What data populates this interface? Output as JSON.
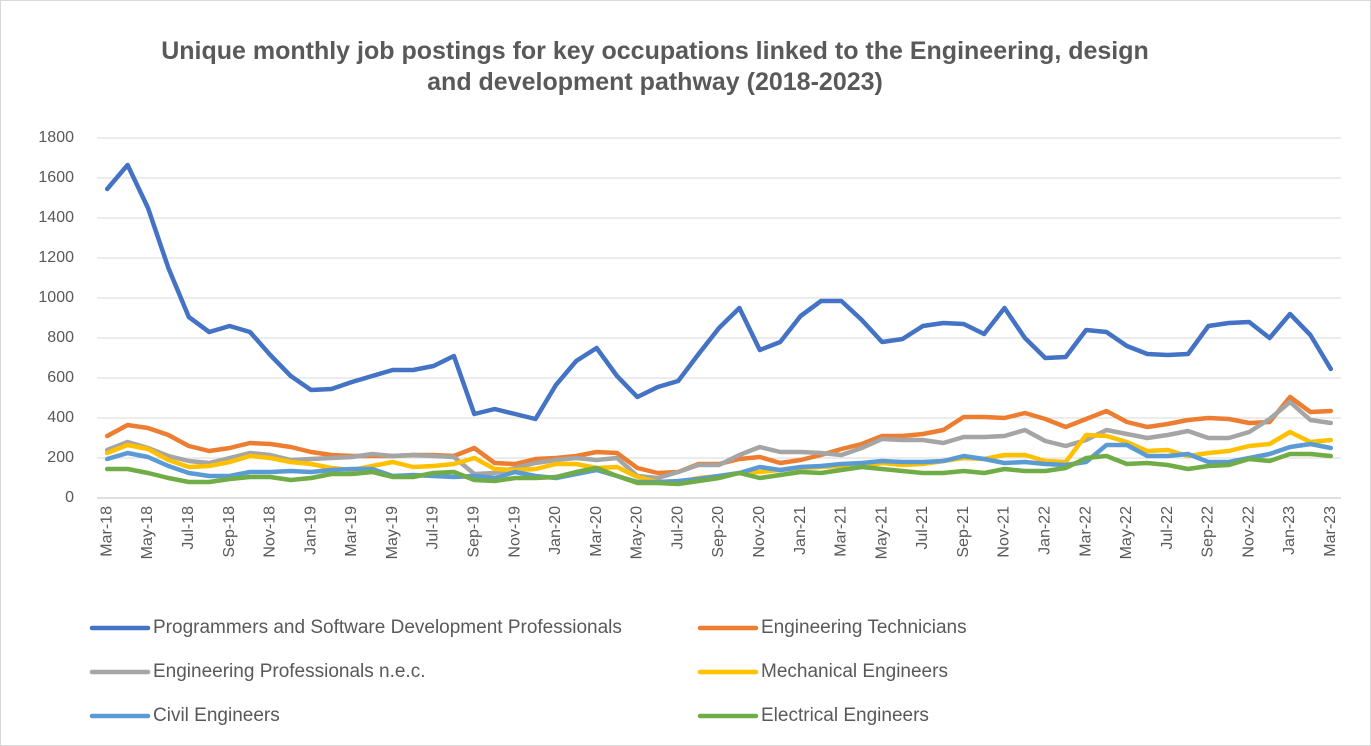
{
  "chart_data": {
    "type": "line",
    "title": "Unique monthly job postings for key occupations linked to the Engineering, design and development pathway (2018-2023)",
    "categories": [
      "Mar-18",
      null,
      "May-18",
      null,
      "Jul-18",
      null,
      "Sep-18",
      null,
      "Nov-18",
      null,
      "Jan-19",
      null,
      "Mar-19",
      null,
      "May-19",
      null,
      "Jul-19",
      null,
      "Sep-19",
      null,
      "Nov-19",
      null,
      "Jan-20",
      null,
      "Mar-20",
      null,
      "May-20",
      null,
      "Jul-20",
      null,
      "Sep-20",
      null,
      "Nov-20",
      null,
      "Jan-21",
      null,
      "Mar-21",
      null,
      "May-21",
      null,
      "Jul-21",
      null,
      "Sep-21",
      null,
      "Nov-21",
      null,
      "Jan-22",
      null,
      "Mar-22",
      null,
      "May-22",
      null,
      "Jul-22",
      null,
      "Sep-22",
      null,
      "Nov-22",
      null,
      "Jan-23",
      null,
      "Mar-23"
    ],
    "series": [
      {
        "name": "Programmers and Software Development Professionals",
        "color": "#4472c4",
        "values": [
          1545,
          1665,
          1450,
          1150,
          905,
          830,
          860,
          830,
          715,
          610,
          540,
          545,
          580,
          610,
          640,
          640,
          660,
          710,
          420,
          445,
          420,
          395,
          565,
          685,
          750,
          610,
          505,
          555,
          585,
          720,
          850,
          950,
          740,
          780,
          910,
          985,
          985,
          890,
          780,
          795,
          860,
          875,
          870,
          820,
          950,
          800,
          700,
          705,
          840,
          830,
          760,
          720,
          715,
          720,
          860,
          875,
          880,
          800,
          920,
          815,
          645
        ]
      },
      {
        "name": "Engineering Technicians",
        "color": "#ed7d31",
        "values": [
          310,
          365,
          350,
          315,
          260,
          235,
          250,
          275,
          270,
          255,
          230,
          215,
          210,
          210,
          210,
          215,
          215,
          210,
          250,
          175,
          170,
          195,
          200,
          210,
          230,
          225,
          150,
          125,
          130,
          170,
          170,
          195,
          205,
          175,
          190,
          215,
          245,
          270,
          310,
          310,
          320,
          340,
          405,
          405,
          400,
          425,
          395,
          355,
          395,
          435,
          380,
          355,
          370,
          390,
          400,
          395,
          375,
          380,
          505,
          430,
          435
        ]
      },
      {
        "name": "Engineering Professionals n.e.c.",
        "color": "#a5a5a5",
        "values": [
          240,
          280,
          250,
          210,
          185,
          175,
          200,
          225,
          215,
          190,
          195,
          200,
          205,
          220,
          210,
          215,
          210,
          205,
          120,
          125,
          150,
          175,
          190,
          200,
          190,
          200,
          110,
          100,
          130,
          165,
          165,
          215,
          255,
          230,
          230,
          225,
          215,
          250,
          295,
          290,
          290,
          275,
          305,
          305,
          310,
          340,
          285,
          260,
          290,
          340,
          320,
          300,
          315,
          335,
          300,
          300,
          330,
          395,
          480,
          390,
          375
        ]
      },
      {
        "name": "Mechanical Engineers",
        "color": "#ffc000",
        "values": [
          225,
          265,
          245,
          190,
          155,
          160,
          180,
          210,
          200,
          180,
          170,
          150,
          140,
          160,
          180,
          155,
          160,
          170,
          200,
          145,
          140,
          145,
          170,
          170,
          150,
          155,
          105,
          80,
          80,
          100,
          110,
          125,
          130,
          140,
          150,
          155,
          160,
          160,
          175,
          165,
          170,
          185,
          200,
          195,
          215,
          215,
          185,
          180,
          315,
          310,
          280,
          235,
          240,
          210,
          225,
          235,
          260,
          270,
          330,
          280,
          290
        ]
      },
      {
        "name": "Civil Engineers",
        "color": "#5b9bd5",
        "values": [
          195,
          225,
          205,
          160,
          125,
          110,
          110,
          130,
          130,
          135,
          130,
          140,
          145,
          145,
          110,
          115,
          110,
          105,
          110,
          100,
          130,
          110,
          100,
          120,
          140,
          110,
          80,
          80,
          85,
          95,
          110,
          125,
          155,
          140,
          155,
          160,
          170,
          175,
          185,
          180,
          180,
          185,
          210,
          195,
          175,
          180,
          170,
          165,
          180,
          265,
          265,
          210,
          210,
          220,
          180,
          180,
          200,
          220,
          255,
          270,
          250
        ]
      },
      {
        "name": "Electrical Engineers",
        "color": "#70ad47",
        "values": [
          145,
          145,
          125,
          100,
          80,
          80,
          95,
          105,
          105,
          90,
          100,
          120,
          120,
          130,
          105,
          105,
          125,
          130,
          90,
          85,
          100,
          100,
          105,
          130,
          150,
          110,
          75,
          75,
          70,
          85,
          100,
          125,
          100,
          115,
          130,
          125,
          140,
          155,
          145,
          135,
          125,
          125,
          135,
          125,
          145,
          135,
          135,
          150,
          200,
          210,
          170,
          175,
          165,
          145,
          160,
          165,
          195,
          185,
          220,
          220,
          210
        ]
      }
    ],
    "ylim": [
      0,
      1800
    ],
    "yticks": [
      0,
      200,
      400,
      600,
      800,
      1000,
      1200,
      1400,
      1600,
      1800
    ],
    "grid": true,
    "legend": "bottom"
  }
}
